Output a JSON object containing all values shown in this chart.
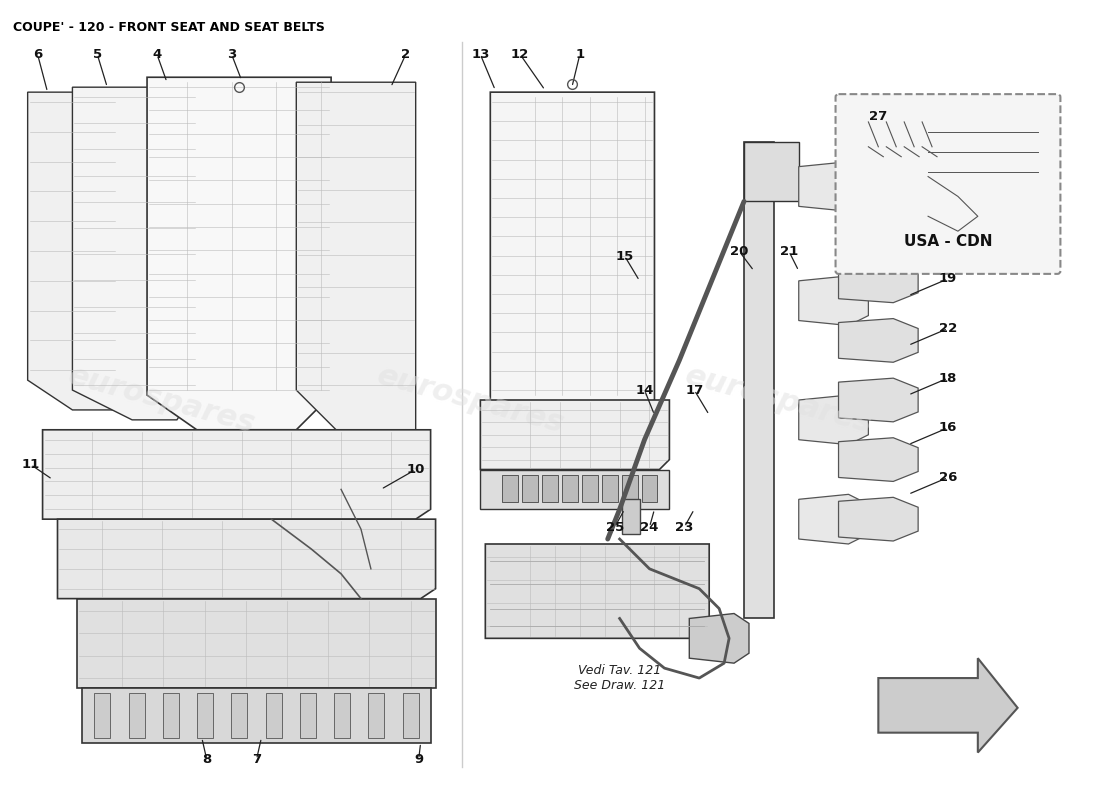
{
  "title": "COUPE' - 120 - FRONT SEAT AND SEAT BELTS",
  "title_fontsize": 9,
  "title_fontweight": "bold",
  "bg_color": "#ffffff",
  "watermark_color": "#e0e0e0",
  "watermark_texts": [
    "eurospares",
    "eurospares",
    "eurospares"
  ],
  "usa_cdn_label": "USA - CDN",
  "vedi_tav_text": "Vedi Tav. 121\nSee Draw. 121",
  "arrow_color": "#222222"
}
